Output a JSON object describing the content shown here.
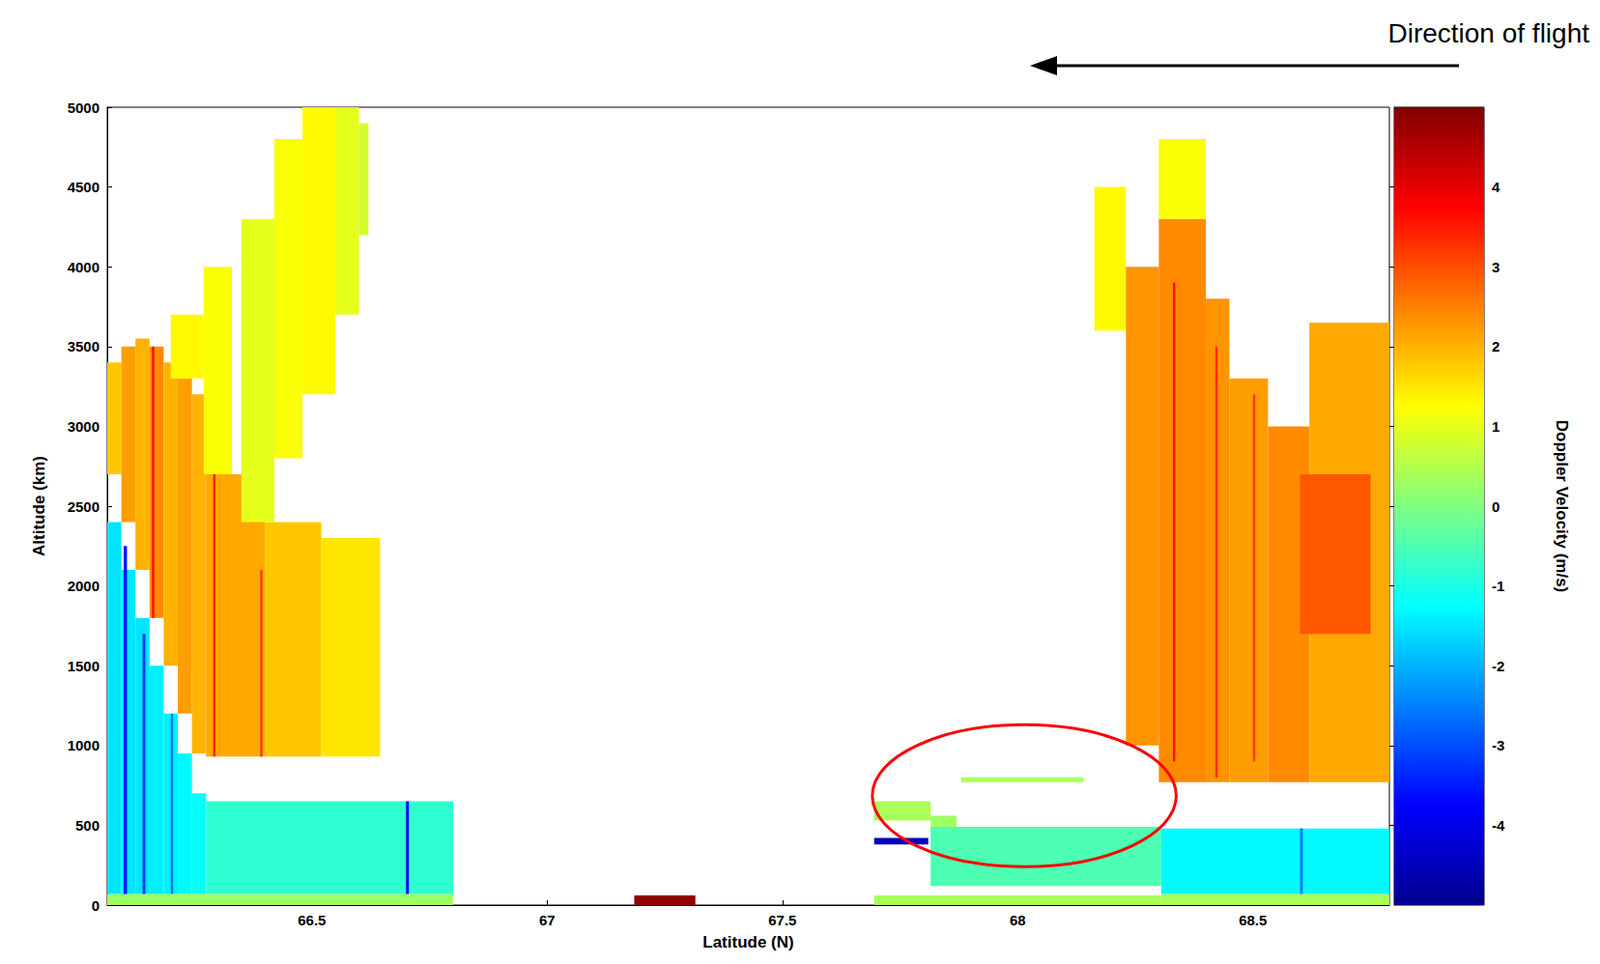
{
  "chart_data": {
    "type": "heatmap",
    "x_label": "Latitude (N)",
    "y_label": "Altitude (km)",
    "xlim": [
      66.065,
      68.79
    ],
    "xticks": [
      66.5,
      67,
      67.5,
      68,
      68.5
    ],
    "ylim": [
      0,
      5000
    ],
    "yticks": [
      0,
      500,
      1000,
      1500,
      2000,
      2500,
      3000,
      3500,
      4000,
      4500,
      5000
    ],
    "grid": false,
    "colorbar": {
      "label": "Doppler Velocity (m/s)",
      "range": [
        -5,
        5
      ],
      "ticks": [
        -4,
        -3,
        -2,
        -1,
        0,
        1,
        2,
        3,
        4
      ]
    },
    "cells": [
      [
        66.065,
        66.8,
        0,
        70,
        0.3
      ],
      [
        66.275,
        66.8,
        70,
        650,
        -0.8
      ],
      [
        66.065,
        66.095,
        70,
        2400,
        -1.5
      ],
      [
        66.095,
        66.125,
        70,
        2100,
        -1.5
      ],
      [
        66.125,
        66.155,
        70,
        1800,
        -1.5
      ],
      [
        66.155,
        66.185,
        70,
        1500,
        -1.4
      ],
      [
        66.185,
        66.215,
        70,
        1200,
        -1.4
      ],
      [
        66.215,
        66.245,
        70,
        950,
        -1.3
      ],
      [
        66.245,
        66.275,
        70,
        700,
        -1.2
      ],
      [
        66.1,
        66.107,
        70,
        2250,
        -3.5
      ],
      [
        66.14,
        66.146,
        70,
        1700,
        -3.2
      ],
      [
        66.2,
        66.205,
        70,
        1200,
        -2.6
      ],
      [
        66.7,
        66.706,
        70,
        650,
        -3.8
      ],
      [
        66.065,
        66.095,
        2700,
        3400,
        1.8
      ],
      [
        66.095,
        66.125,
        2400,
        3500,
        2.2
      ],
      [
        66.125,
        66.155,
        2100,
        3550,
        2.0
      ],
      [
        66.155,
        66.185,
        1800,
        3500,
        2.4
      ],
      [
        66.185,
        66.215,
        1500,
        3400,
        2.0
      ],
      [
        66.215,
        66.245,
        1200,
        3300,
        2.2
      ],
      [
        66.245,
        66.275,
        950,
        3200,
        2.0
      ],
      [
        66.275,
        66.4,
        930,
        2700,
        2.1
      ],
      [
        66.4,
        66.52,
        930,
        2400,
        1.8
      ],
      [
        66.52,
        66.645,
        930,
        2300,
        1.5
      ],
      [
        66.2,
        66.27,
        3300,
        3700,
        1.3
      ],
      [
        66.27,
        66.33,
        2700,
        4000,
        1.2
      ],
      [
        66.35,
        66.42,
        2400,
        4300,
        1.0
      ],
      [
        66.42,
        66.48,
        2800,
        4800,
        1.2
      ],
      [
        66.48,
        66.55,
        3200,
        5000,
        1.3
      ],
      [
        66.55,
        66.6,
        3700,
        5000,
        1.0
      ],
      [
        66.6,
        66.62,
        4200,
        4900,
        0.8
      ],
      [
        66.16,
        66.165,
        1800,
        3500,
        3.6
      ],
      [
        66.29,
        66.295,
        930,
        2700,
        3.4
      ],
      [
        66.39,
        66.395,
        930,
        2100,
        3.2
      ],
      [
        67.185,
        67.315,
        0,
        60,
        4.8
      ],
      [
        67.695,
        68.305,
        0,
        60,
        0.4
      ],
      [
        67.695,
        67.815,
        530,
        650,
        0.4
      ],
      [
        67.815,
        67.87,
        470,
        560,
        0.3
      ],
      [
        67.695,
        67.81,
        380,
        420,
        -4.5
      ],
      [
        67.815,
        68.305,
        120,
        490,
        -0.5
      ],
      [
        67.88,
        68.14,
        770,
        800,
        0.4
      ],
      [
        68.305,
        68.79,
        0,
        70,
        0.4
      ],
      [
        68.305,
        68.79,
        70,
        480,
        -1.3
      ],
      [
        68.6,
        68.606,
        70,
        480,
        -2.6
      ],
      [
        68.163,
        68.23,
        3600,
        4500,
        1.3
      ],
      [
        68.23,
        68.3,
        1000,
        4000,
        2.3
      ],
      [
        68.3,
        68.4,
        770,
        4300,
        2.4
      ],
      [
        68.3,
        68.4,
        4300,
        4800,
        1.2
      ],
      [
        68.4,
        68.45,
        770,
        3800,
        2.3
      ],
      [
        68.45,
        68.532,
        770,
        3300,
        2.2
      ],
      [
        68.532,
        68.62,
        770,
        3000,
        2.4
      ],
      [
        68.62,
        68.79,
        770,
        3650,
        2.1
      ],
      [
        68.6,
        68.75,
        1700,
        2700,
        2.9
      ],
      [
        68.33,
        68.335,
        900,
        3900,
        3.6
      ],
      [
        68.42,
        68.425,
        800,
        3500,
        3.3
      ],
      [
        68.5,
        68.505,
        900,
        3200,
        3.2
      ]
    ],
    "annotations": [
      {
        "type": "ellipse",
        "lat": [
          67.691,
          68.337
        ],
        "alt": [
          240,
          1130
        ],
        "color": "#ff0000"
      },
      {
        "type": "arrow",
        "text": "Direction of flight"
      }
    ]
  }
}
